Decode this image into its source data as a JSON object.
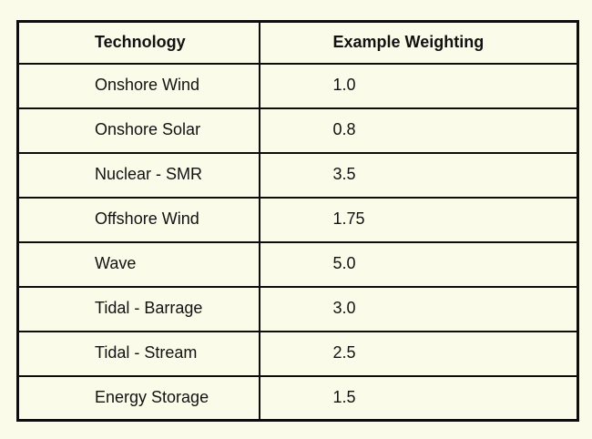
{
  "colors": {
    "page_background": "#FBFBE9",
    "table_border": "#0d0d0d",
    "text": "#121212"
  },
  "table": {
    "columns": [
      {
        "label": "Technology"
      },
      {
        "label": "Example Weighting"
      }
    ],
    "rows": [
      {
        "technology": "Onshore Wind",
        "weighting": "1.0"
      },
      {
        "technology": "Onshore Solar",
        "weighting": "0.8"
      },
      {
        "technology": "Nuclear - SMR",
        "weighting": "3.5"
      },
      {
        "technology": "Offshore Wind",
        "weighting": "1.75"
      },
      {
        "technology": "Wave",
        "weighting": "5.0"
      },
      {
        "technology": "Tidal - Barrage",
        "weighting": "3.0"
      },
      {
        "technology": "Tidal - Stream",
        "weighting": "2.5"
      },
      {
        "technology": "Energy Storage",
        "weighting": "1.5"
      }
    ]
  },
  "chart_data": {
    "type": "table",
    "title": "",
    "columns": [
      "Technology",
      "Example Weighting"
    ],
    "rows": [
      [
        "Onshore Wind",
        1.0
      ],
      [
        "Onshore Solar",
        0.8
      ],
      [
        "Nuclear - SMR",
        3.5
      ],
      [
        "Offshore Wind",
        1.75
      ],
      [
        "Wave",
        5.0
      ],
      [
        "Tidal - Barrage",
        3.0
      ],
      [
        "Tidal - Stream",
        2.5
      ],
      [
        "Energy Storage",
        1.5
      ]
    ]
  }
}
